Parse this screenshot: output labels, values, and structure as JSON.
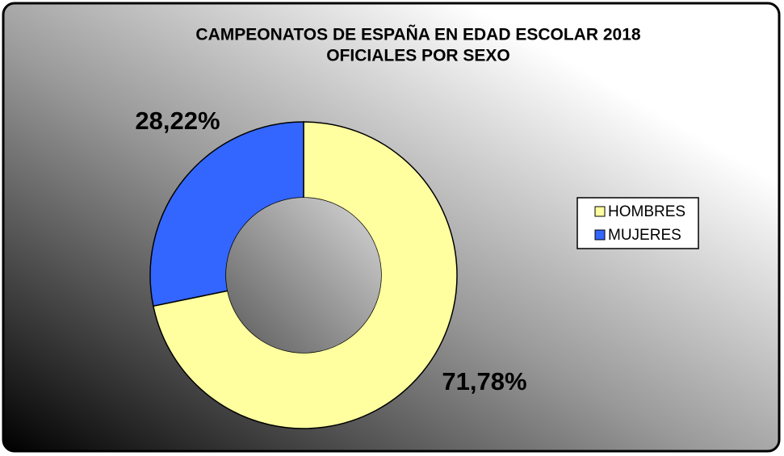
{
  "chart_data": {
    "type": "donut",
    "title": "CAMPEONATOS DE ESPAÑA EN EDAD ESCOLAR 2018",
    "subtitle": "OFICIALES POR SEXO",
    "categories": [
      "HOMBRES",
      "MUJERES"
    ],
    "values": [
      71.78,
      28.22
    ],
    "value_labels": [
      "71,78%",
      "28,22%"
    ],
    "colors": [
      "#ffffa0",
      "#3366ff"
    ],
    "legend": "right"
  }
}
